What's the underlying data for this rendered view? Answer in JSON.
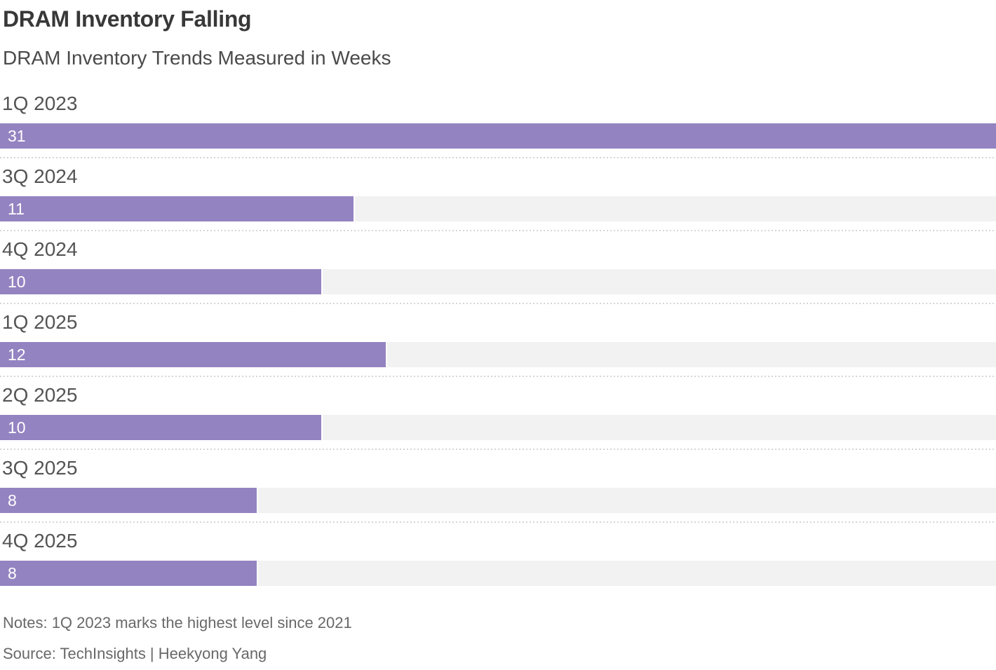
{
  "header": {
    "title": "DRAM Inventory Falling",
    "subtitle": "DRAM Inventory Trends Measured in Weeks"
  },
  "chart_data": {
    "type": "bar",
    "orientation": "horizontal",
    "categories": [
      "1Q 2023",
      "3Q 2024",
      "4Q 2024",
      "1Q 2025",
      "2Q 2025",
      "3Q 2025",
      "4Q 2025"
    ],
    "values": [
      31,
      11,
      10,
      12,
      10,
      8,
      8
    ],
    "unit": "weeks",
    "xlim": [
      0,
      31
    ],
    "value_labels": "inside-left",
    "grid": false,
    "legend": "none",
    "bar_color": "#9483c1",
    "track_color": "#f2f2f2"
  },
  "footer": {
    "notes": "Notes: 1Q 2023 marks the highest level since 2021",
    "source": "Source: TechInsights | Heekyong Yang"
  }
}
